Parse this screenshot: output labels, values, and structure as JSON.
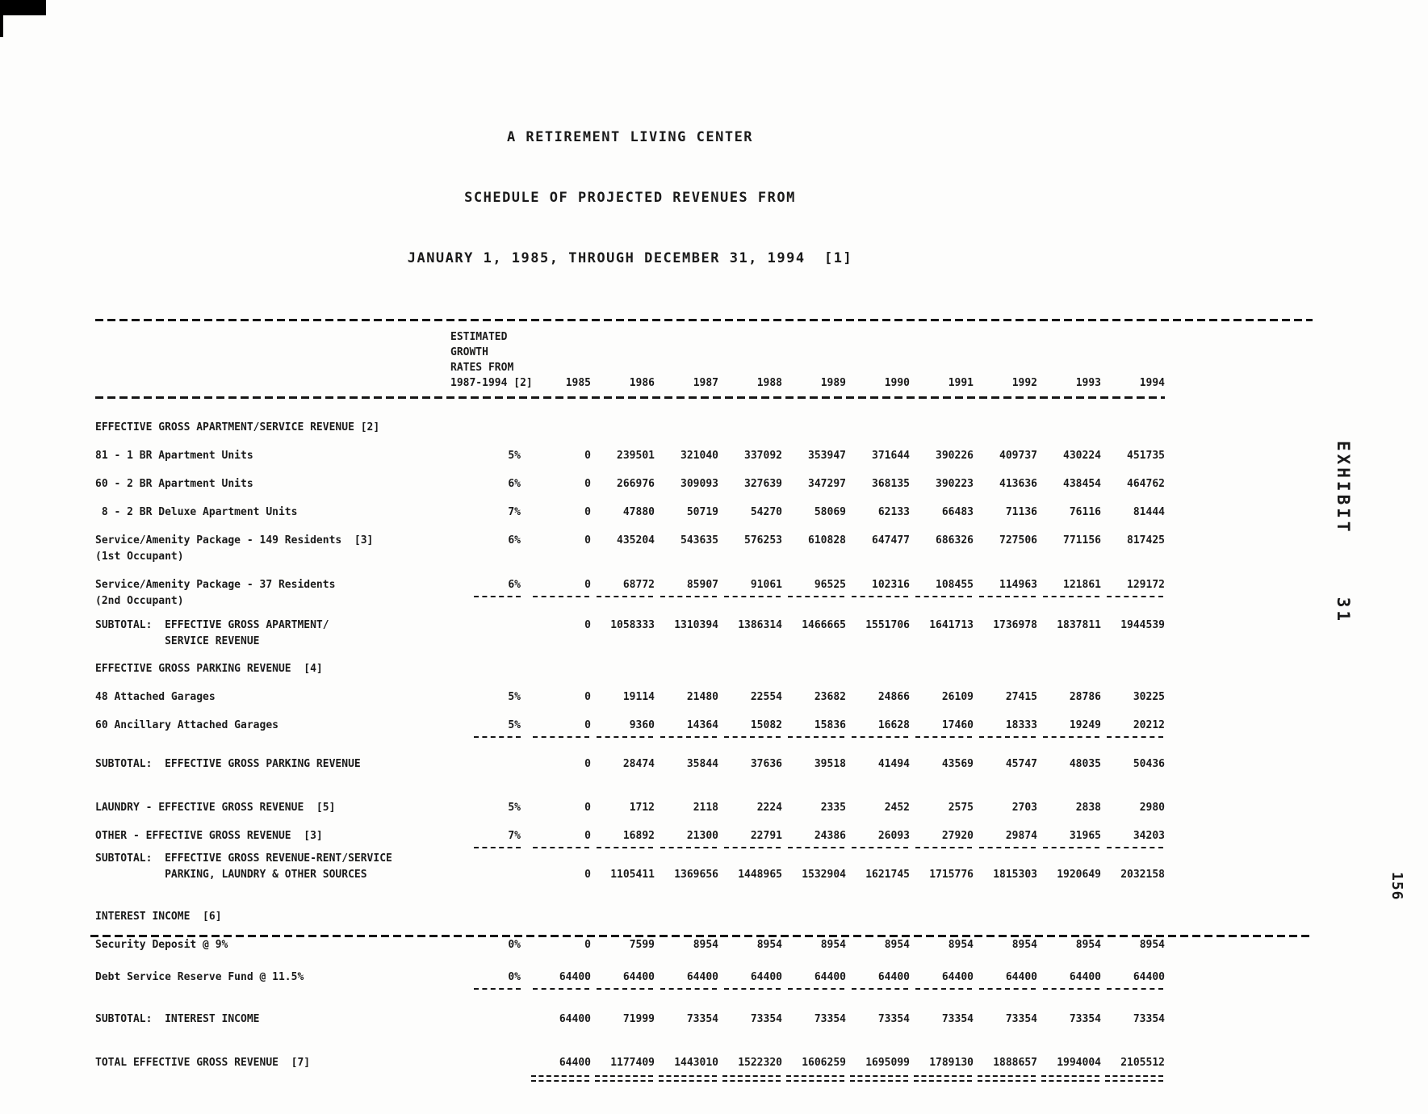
{
  "page": {
    "title_line1": "A RETIREMENT LIVING CENTER",
    "title_line2": "SCHEDULE OF PROJECTED REVENUES FROM",
    "title_line3": "JANUARY 1, 1985, THROUGH DECEMBER 31, 1994  [1]",
    "exhibit_label": "EXHIBIT  31",
    "page_number": "156"
  },
  "table": {
    "growth_header_lines": [
      "ESTIMATED",
      "GROWTH",
      "RATES FROM",
      "1987-1994 [2]"
    ],
    "years": [
      "1985",
      "1986",
      "1987",
      "1988",
      "1989",
      "1990",
      "1991",
      "1992",
      "1993",
      "1994"
    ],
    "rows": [
      {
        "name": "section-apartment",
        "type": "section",
        "label": "EFFECTIVE GROSS APARTMENT/SERVICE REVENUE [2]"
      },
      {
        "name": "apt-1br",
        "type": "data",
        "label": "81 - 1 BR Apartment Units",
        "growth": "5%",
        "values": [
          "0",
          "239501",
          "321040",
          "337092",
          "353947",
          "371644",
          "390226",
          "409737",
          "430224",
          "451735"
        ]
      },
      {
        "name": "apt-2br",
        "type": "data",
        "label": "60 - 2 BR Apartment Units",
        "growth": "6%",
        "values": [
          "0",
          "266976",
          "309093",
          "327639",
          "347297",
          "368135",
          "390223",
          "413636",
          "438454",
          "464762"
        ]
      },
      {
        "name": "apt-2br-deluxe",
        "type": "data",
        "label": " 8 - 2 BR Deluxe Apartment Units",
        "growth": "7%",
        "values": [
          "0",
          "47880",
          "50719",
          "54270",
          "58069",
          "62133",
          "66483",
          "71136",
          "76116",
          "81444"
        ]
      },
      {
        "name": "service-149",
        "type": "data",
        "label": "Service/Amenity Package - 149 Residents  [3]",
        "label2": "(1st Occupant)",
        "growth": "6%",
        "values": [
          "0",
          "435204",
          "543635",
          "576253",
          "610828",
          "647477",
          "686326",
          "727506",
          "771156",
          "817425"
        ]
      },
      {
        "name": "service-37",
        "type": "data",
        "label": "Service/Amenity Package - 37 Residents",
        "label2": "(2nd Occupant)",
        "growth": "6%",
        "rule": "single",
        "values": [
          "0",
          "68772",
          "85907",
          "91061",
          "96525",
          "102316",
          "108455",
          "114963",
          "121861",
          "129172"
        ]
      },
      {
        "name": "sub-apartment",
        "type": "subtotal",
        "label": "SUBTOTAL:  EFFECTIVE GROSS APARTMENT/",
        "label2": "           SERVICE REVENUE",
        "values": [
          "0",
          "1058333",
          "1310394",
          "1386314",
          "1466665",
          "1551706",
          "1641713",
          "1736978",
          "1837811",
          "1944539"
        ]
      },
      {
        "name": "section-parking",
        "type": "section",
        "label": "EFFECTIVE GROSS PARKING REVENUE  [4]"
      },
      {
        "name": "garages-48",
        "type": "data",
        "label": "48 Attached Garages",
        "growth": "5%",
        "values": [
          "0",
          "19114",
          "21480",
          "22554",
          "23682",
          "24866",
          "26109",
          "27415",
          "28786",
          "30225"
        ]
      },
      {
        "name": "garages-60",
        "type": "data",
        "label": "60 Ancillary Attached Garages",
        "growth": "5%",
        "rule": "single",
        "values": [
          "0",
          "9360",
          "14364",
          "15082",
          "15836",
          "16628",
          "17460",
          "18333",
          "19249",
          "20212"
        ]
      },
      {
        "name": "sub-parking",
        "type": "subtotal",
        "label": "SUBTOTAL:  EFFECTIVE GROSS PARKING REVENUE",
        "values": [
          "0",
          "28474",
          "35844",
          "37636",
          "39518",
          "41494",
          "43569",
          "45747",
          "48035",
          "50436"
        ]
      },
      {
        "name": "laundry",
        "type": "data",
        "label": "LAUNDRY - EFFECTIVE GROSS REVENUE  [5]",
        "growth": "5%",
        "values": [
          "0",
          "1712",
          "2118",
          "2224",
          "2335",
          "2452",
          "2575",
          "2703",
          "2838",
          "2980"
        ]
      },
      {
        "name": "other",
        "type": "data",
        "label": "OTHER - EFFECTIVE GROSS REVENUE  [3]",
        "growth": "7%",
        "rule": "single",
        "values": [
          "0",
          "16892",
          "21300",
          "22791",
          "24386",
          "26093",
          "27920",
          "29874",
          "31965",
          "34203"
        ]
      },
      {
        "name": "sub-rent-service",
        "type": "subtotal",
        "label": "SUBTOTAL:  EFFECTIVE GROSS REVENUE-RENT/SERVICE",
        "label2": "           PARKING, LAUNDRY & OTHER SOURCES",
        "values_on": "bottom",
        "values": [
          "0",
          "1105411",
          "1369656",
          "1448965",
          "1532904",
          "1621745",
          "1715776",
          "1815303",
          "1920649",
          "2032158"
        ]
      },
      {
        "name": "section-interest",
        "type": "section",
        "label": "INTEREST INCOME  [6]"
      },
      {
        "name": "security-deposit",
        "type": "data",
        "label": "Security Deposit @ 9%",
        "growth": "0%",
        "values": [
          "0",
          "7599",
          "8954",
          "8954",
          "8954",
          "8954",
          "8954",
          "8954",
          "8954",
          "8954"
        ]
      },
      {
        "name": "debt-service",
        "type": "data",
        "label": "Debt Service Reserve Fund @ 11.5%",
        "growth": "0%",
        "rule": "single",
        "values": [
          "64400",
          "64400",
          "64400",
          "64400",
          "64400",
          "64400",
          "64400",
          "64400",
          "64400",
          "64400"
        ]
      },
      {
        "name": "sub-interest",
        "type": "subtotal",
        "label": "SUBTOTAL:  INTEREST INCOME",
        "values": [
          "64400",
          "71999",
          "73354",
          "73354",
          "73354",
          "73354",
          "73354",
          "73354",
          "73354",
          "73354"
        ]
      },
      {
        "name": "total",
        "type": "total",
        "label": "TOTAL EFFECTIVE GROSS REVENUE  [7]",
        "rule": "double",
        "values": [
          "64400",
          "1177409",
          "1443010",
          "1522320",
          "1606259",
          "1695099",
          "1789130",
          "1888657",
          "1994004",
          "2105512"
        ]
      }
    ]
  }
}
